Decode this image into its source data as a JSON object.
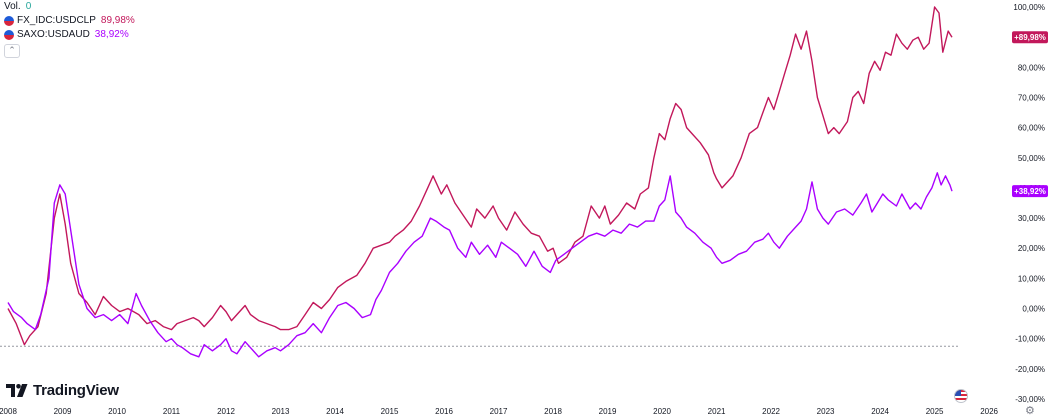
{
  "legend": {
    "vol_label": "Vol.",
    "vol_value": "0",
    "series": [
      {
        "name": "FX_IDC:USDCLP",
        "value": "89,98%",
        "color": "#c2185b"
      },
      {
        "name": "SAXO:USDAUD",
        "value": "38,92%",
        "color": "#aa00ff"
      }
    ]
  },
  "brand": "TradingView",
  "icons": [
    "tradingview-logo-icon",
    "us-flag-icon",
    "gear-icon",
    "chevron-up-icon"
  ],
  "chart_data": {
    "type": "line",
    "x_ticks": [
      "2008",
      "2009",
      "2010",
      "2011",
      "2012",
      "2013",
      "2014",
      "2015",
      "2016",
      "2017",
      "2018",
      "2019",
      "2020",
      "2021",
      "2022",
      "2023",
      "2024",
      "2025",
      "2026"
    ],
    "y_ticks": [
      "100,00%",
      "90,00%",
      "80,00%",
      "70,00%",
      "60,00%",
      "50,00%",
      "40,00%",
      "30,00%",
      "20,00%",
      "10,00%",
      "0,00%",
      "-10,00%",
      "-20,00%",
      "-30,00%"
    ],
    "ylim": [
      -30,
      100
    ],
    "xlim": [
      2008.0,
      2026.2
    ],
    "baseline": -12.5,
    "series": [
      {
        "name": "FX_IDC:USDCLP",
        "color": "#c2185b",
        "last_label": "+89,98%",
        "last_value": 89.98,
        "points": [
          [
            2008.0,
            0
          ],
          [
            2008.15,
            -5
          ],
          [
            2008.3,
            -12
          ],
          [
            2008.4,
            -9
          ],
          [
            2008.55,
            -6
          ],
          [
            2008.7,
            5
          ],
          [
            2008.85,
            30
          ],
          [
            2008.95,
            38
          ],
          [
            2009.05,
            28
          ],
          [
            2009.15,
            15
          ],
          [
            2009.3,
            5
          ],
          [
            2009.45,
            2
          ],
          [
            2009.6,
            -2
          ],
          [
            2009.75,
            4
          ],
          [
            2009.9,
            1
          ],
          [
            2010.05,
            -1
          ],
          [
            2010.2,
            0
          ],
          [
            2010.4,
            -2
          ],
          [
            2010.55,
            -5
          ],
          [
            2010.7,
            -4
          ],
          [
            2010.85,
            -6
          ],
          [
            2011.0,
            -7
          ],
          [
            2011.1,
            -5
          ],
          [
            2011.25,
            -4
          ],
          [
            2011.4,
            -3
          ],
          [
            2011.5,
            -4
          ],
          [
            2011.6,
            -6
          ],
          [
            2011.75,
            -3
          ],
          [
            2011.9,
            1
          ],
          [
            2012.0,
            -1
          ],
          [
            2012.1,
            -4
          ],
          [
            2012.2,
            -2
          ],
          [
            2012.35,
            1
          ],
          [
            2012.45,
            -2
          ],
          [
            2012.6,
            -4
          ],
          [
            2012.75,
            -5
          ],
          [
            2012.9,
            -6
          ],
          [
            2013.0,
            -7
          ],
          [
            2013.15,
            -7
          ],
          [
            2013.3,
            -6
          ],
          [
            2013.45,
            -2
          ],
          [
            2013.6,
            2
          ],
          [
            2013.75,
            0
          ],
          [
            2013.9,
            3
          ],
          [
            2014.05,
            7
          ],
          [
            2014.2,
            9
          ],
          [
            2014.4,
            11
          ],
          [
            2014.55,
            15
          ],
          [
            2014.7,
            20
          ],
          [
            2014.85,
            21
          ],
          [
            2015.0,
            22
          ],
          [
            2015.1,
            24
          ],
          [
            2015.25,
            26
          ],
          [
            2015.4,
            29
          ],
          [
            2015.55,
            34
          ],
          [
            2015.7,
            40
          ],
          [
            2015.8,
            44
          ],
          [
            2015.95,
            38
          ],
          [
            2016.05,
            41
          ],
          [
            2016.2,
            35
          ],
          [
            2016.35,
            31
          ],
          [
            2016.5,
            27
          ],
          [
            2016.6,
            33
          ],
          [
            2016.75,
            30
          ],
          [
            2016.9,
            34
          ],
          [
            2017.0,
            30
          ],
          [
            2017.15,
            26
          ],
          [
            2017.3,
            32
          ],
          [
            2017.45,
            28
          ],
          [
            2017.6,
            25
          ],
          [
            2017.75,
            24
          ],
          [
            2017.9,
            19
          ],
          [
            2018.0,
            20
          ],
          [
            2018.1,
            15
          ],
          [
            2018.25,
            17
          ],
          [
            2018.4,
            22
          ],
          [
            2018.55,
            24
          ],
          [
            2018.7,
            34
          ],
          [
            2018.85,
            30
          ],
          [
            2018.95,
            34
          ],
          [
            2019.05,
            28
          ],
          [
            2019.2,
            31
          ],
          [
            2019.35,
            35
          ],
          [
            2019.5,
            33
          ],
          [
            2019.6,
            38
          ],
          [
            2019.75,
            40
          ],
          [
            2019.85,
            50
          ],
          [
            2019.95,
            58
          ],
          [
            2020.05,
            56
          ],
          [
            2020.15,
            63
          ],
          [
            2020.25,
            68
          ],
          [
            2020.35,
            66
          ],
          [
            2020.45,
            60
          ],
          [
            2020.55,
            58
          ],
          [
            2020.7,
            55
          ],
          [
            2020.85,
            51
          ],
          [
            2020.95,
            45
          ],
          [
            2021.0,
            43
          ],
          [
            2021.1,
            40
          ],
          [
            2021.2,
            42
          ],
          [
            2021.3,
            44
          ],
          [
            2021.45,
            50
          ],
          [
            2021.6,
            58
          ],
          [
            2021.75,
            60
          ],
          [
            2021.85,
            65
          ],
          [
            2021.95,
            70
          ],
          [
            2022.05,
            66
          ],
          [
            2022.15,
            72
          ],
          [
            2022.25,
            78
          ],
          [
            2022.35,
            84
          ],
          [
            2022.45,
            91
          ],
          [
            2022.55,
            86
          ],
          [
            2022.65,
            92
          ],
          [
            2022.75,
            82
          ],
          [
            2022.85,
            70
          ],
          [
            2022.95,
            64
          ],
          [
            2023.05,
            58
          ],
          [
            2023.15,
            60
          ],
          [
            2023.25,
            58
          ],
          [
            2023.4,
            62
          ],
          [
            2023.5,
            70
          ],
          [
            2023.6,
            72
          ],
          [
            2023.7,
            68
          ],
          [
            2023.8,
            78
          ],
          [
            2023.9,
            82
          ],
          [
            2024.0,
            79
          ],
          [
            2024.1,
            85
          ],
          [
            2024.2,
            84
          ],
          [
            2024.3,
            91
          ],
          [
            2024.4,
            88
          ],
          [
            2024.5,
            86
          ],
          [
            2024.6,
            89
          ],
          [
            2024.7,
            90
          ],
          [
            2024.8,
            86
          ],
          [
            2024.9,
            88
          ],
          [
            2025.0,
            100
          ],
          [
            2025.08,
            98
          ],
          [
            2025.15,
            85
          ],
          [
            2025.25,
            92
          ],
          [
            2025.32,
            89.98
          ]
        ]
      },
      {
        "name": "SAXO:USDAUD",
        "color": "#aa00ff",
        "last_label": "+38,92%",
        "last_value": 38.92,
        "points": [
          [
            2008.0,
            2
          ],
          [
            2008.1,
            -1
          ],
          [
            2008.25,
            -3
          ],
          [
            2008.35,
            -5
          ],
          [
            2008.5,
            -7
          ],
          [
            2008.6,
            -2
          ],
          [
            2008.75,
            10
          ],
          [
            2008.85,
            35
          ],
          [
            2008.95,
            41
          ],
          [
            2009.05,
            38
          ],
          [
            2009.15,
            26
          ],
          [
            2009.3,
            8
          ],
          [
            2009.45,
            0
          ],
          [
            2009.6,
            -3
          ],
          [
            2009.75,
            -2
          ],
          [
            2009.9,
            -4
          ],
          [
            2010.05,
            -2
          ],
          [
            2010.2,
            -5
          ],
          [
            2010.35,
            5
          ],
          [
            2010.45,
            1
          ],
          [
            2010.6,
            -4
          ],
          [
            2010.75,
            -8
          ],
          [
            2010.9,
            -11
          ],
          [
            2011.0,
            -10
          ],
          [
            2011.1,
            -12
          ],
          [
            2011.2,
            -13
          ],
          [
            2011.35,
            -15
          ],
          [
            2011.5,
            -16
          ],
          [
            2011.6,
            -12
          ],
          [
            2011.75,
            -14
          ],
          [
            2011.9,
            -12
          ],
          [
            2012.0,
            -10
          ],
          [
            2012.1,
            -14
          ],
          [
            2012.2,
            -15
          ],
          [
            2012.35,
            -11
          ],
          [
            2012.45,
            -13
          ],
          [
            2012.6,
            -16
          ],
          [
            2012.75,
            -14
          ],
          [
            2012.9,
            -13
          ],
          [
            2013.0,
            -14
          ],
          [
            2013.15,
            -12
          ],
          [
            2013.3,
            -9
          ],
          [
            2013.45,
            -8
          ],
          [
            2013.6,
            -5
          ],
          [
            2013.75,
            -8
          ],
          [
            2013.9,
            -3
          ],
          [
            2014.05,
            1
          ],
          [
            2014.2,
            2
          ],
          [
            2014.35,
            0
          ],
          [
            2014.5,
            -3
          ],
          [
            2014.65,
            -2
          ],
          [
            2014.75,
            3
          ],
          [
            2014.85,
            6
          ],
          [
            2015.0,
            12
          ],
          [
            2015.15,
            15
          ],
          [
            2015.3,
            19
          ],
          [
            2015.45,
            22
          ],
          [
            2015.6,
            24
          ],
          [
            2015.75,
            30
          ],
          [
            2015.85,
            29
          ],
          [
            2016.0,
            27
          ],
          [
            2016.1,
            26
          ],
          [
            2016.25,
            20
          ],
          [
            2016.4,
            17
          ],
          [
            2016.5,
            22
          ],
          [
            2016.65,
            18
          ],
          [
            2016.8,
            21
          ],
          [
            2016.95,
            17
          ],
          [
            2017.05,
            22
          ],
          [
            2017.2,
            20
          ],
          [
            2017.35,
            18
          ],
          [
            2017.5,
            14
          ],
          [
            2017.65,
            19
          ],
          [
            2017.8,
            14
          ],
          [
            2017.95,
            12
          ],
          [
            2018.05,
            16
          ],
          [
            2018.2,
            18
          ],
          [
            2018.35,
            20
          ],
          [
            2018.5,
            22
          ],
          [
            2018.65,
            24
          ],
          [
            2018.8,
            25
          ],
          [
            2018.95,
            24
          ],
          [
            2019.1,
            26
          ],
          [
            2019.25,
            25
          ],
          [
            2019.4,
            28
          ],
          [
            2019.55,
            27
          ],
          [
            2019.7,
            29
          ],
          [
            2019.85,
            29
          ],
          [
            2019.95,
            34
          ],
          [
            2020.05,
            36
          ],
          [
            2020.15,
            44
          ],
          [
            2020.25,
            32
          ],
          [
            2020.35,
            30
          ],
          [
            2020.45,
            27
          ],
          [
            2020.6,
            25
          ],
          [
            2020.75,
            22
          ],
          [
            2020.9,
            20
          ],
          [
            2021.0,
            17
          ],
          [
            2021.1,
            15
          ],
          [
            2021.25,
            16
          ],
          [
            2021.4,
            18
          ],
          [
            2021.55,
            19
          ],
          [
            2021.7,
            22
          ],
          [
            2021.85,
            23
          ],
          [
            2021.95,
            25
          ],
          [
            2022.05,
            22
          ],
          [
            2022.15,
            20
          ],
          [
            2022.3,
            24
          ],
          [
            2022.45,
            27
          ],
          [
            2022.55,
            29
          ],
          [
            2022.65,
            33
          ],
          [
            2022.75,
            42
          ],
          [
            2022.85,
            33
          ],
          [
            2022.95,
            30
          ],
          [
            2023.05,
            28
          ],
          [
            2023.2,
            32
          ],
          [
            2023.35,
            33
          ],
          [
            2023.5,
            31
          ],
          [
            2023.65,
            35
          ],
          [
            2023.75,
            38
          ],
          [
            2023.85,
            32
          ],
          [
            2023.95,
            35
          ],
          [
            2024.05,
            38
          ],
          [
            2024.15,
            36
          ],
          [
            2024.3,
            34
          ],
          [
            2024.4,
            38
          ],
          [
            2024.55,
            33
          ],
          [
            2024.65,
            35
          ],
          [
            2024.75,
            33
          ],
          [
            2024.85,
            37
          ],
          [
            2024.95,
            40
          ],
          [
            2025.05,
            45
          ],
          [
            2025.12,
            41
          ],
          [
            2025.2,
            44
          ],
          [
            2025.28,
            41
          ],
          [
            2025.32,
            38.92
          ]
        ]
      }
    ]
  }
}
